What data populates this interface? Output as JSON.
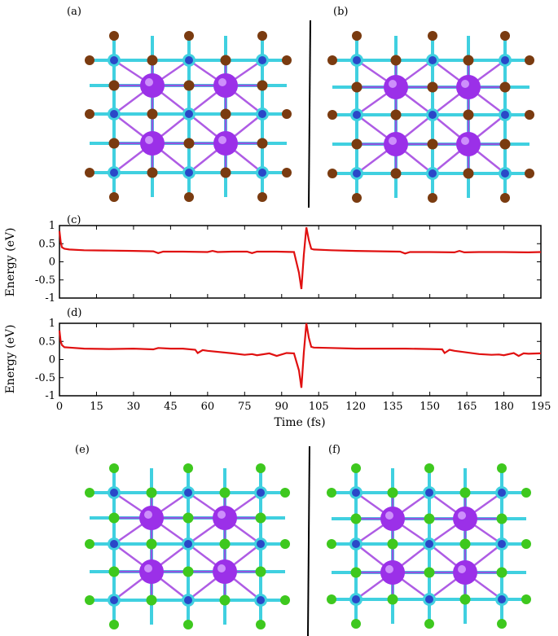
{
  "panels": {
    "a": "(a)",
    "b": "(b)",
    "c": "(c)",
    "d": "(d)",
    "e": "(e)",
    "f": "(f)"
  },
  "colors": {
    "bond_cyan": "#40d0e0",
    "bond_purple": "#a040e0",
    "halide_brown": "#7a3b10",
    "halide_green": "#3ec81e",
    "metal_blue": "#2a48c8",
    "center_purple": "#9b30e8",
    "line_red": "#e01010"
  },
  "chart_data": [
    {
      "type": "line",
      "panel": "c",
      "ylabel": "Energy (eV)",
      "xlabel": "",
      "xlim": [
        0,
        195
      ],
      "ylim": [
        -1,
        1
      ],
      "yticks": [
        "1",
        "0.5",
        "0",
        "-0.5",
        "-1"
      ],
      "series": [
        {
          "x": [
            0,
            0.5,
            1,
            2,
            4,
            10,
            20,
            30,
            38,
            40,
            42,
            50,
            60,
            62,
            64,
            70,
            76,
            78,
            80,
            88,
            95,
            97,
            98,
            99,
            100,
            101,
            102,
            103,
            110,
            120,
            130,
            138,
            140,
            142,
            150,
            160,
            162,
            164,
            170,
            180,
            190,
            195
          ],
          "y": [
            0.85,
            0.55,
            0.4,
            0.36,
            0.34,
            0.32,
            0.31,
            0.3,
            0.29,
            0.24,
            0.28,
            0.28,
            0.27,
            0.3,
            0.27,
            0.28,
            0.28,
            0.24,
            0.28,
            0.28,
            0.27,
            -0.3,
            -0.75,
            0.2,
            0.95,
            0.6,
            0.36,
            0.34,
            0.32,
            0.3,
            0.29,
            0.28,
            0.23,
            0.27,
            0.27,
            0.26,
            0.3,
            0.26,
            0.27,
            0.27,
            0.26,
            0.27
          ]
        }
      ]
    },
    {
      "type": "line",
      "panel": "d",
      "ylabel": "Energy (eV)",
      "xlabel": "Time (fs)",
      "xlim": [
        0,
        195
      ],
      "ylim": [
        -1,
        1
      ],
      "yticks": [
        "1",
        "0.5",
        "0",
        "-0.5",
        "-1"
      ],
      "xticks": [
        "0",
        "15",
        "30",
        "45",
        "60",
        "75",
        "90",
        "105",
        "120",
        "135",
        "150",
        "165",
        "180",
        "195"
      ],
      "series": [
        {
          "x": [
            0,
            0.5,
            1,
            2,
            4,
            10,
            20,
            30,
            38,
            40,
            45,
            50,
            55,
            56,
            58,
            60,
            70,
            75,
            78,
            80,
            85,
            88,
            92,
            95,
            97,
            98,
            99,
            100,
            101,
            102,
            103,
            110,
            120,
            130,
            140,
            150,
            155,
            156,
            158,
            160,
            170,
            175,
            178,
            180,
            184,
            186,
            188,
            190,
            195
          ],
          "y": [
            0.8,
            0.5,
            0.4,
            0.34,
            0.33,
            0.3,
            0.29,
            0.3,
            0.28,
            0.32,
            0.3,
            0.3,
            0.27,
            0.18,
            0.26,
            0.24,
            0.17,
            0.13,
            0.15,
            0.12,
            0.17,
            0.1,
            0.18,
            0.17,
            -0.3,
            -0.78,
            0.2,
            1.0,
            0.6,
            0.35,
            0.33,
            0.32,
            0.3,
            0.3,
            0.3,
            0.29,
            0.28,
            0.18,
            0.27,
            0.24,
            0.15,
            0.13,
            0.14,
            0.12,
            0.18,
            0.1,
            0.17,
            0.16,
            0.17
          ]
        }
      ]
    }
  ]
}
